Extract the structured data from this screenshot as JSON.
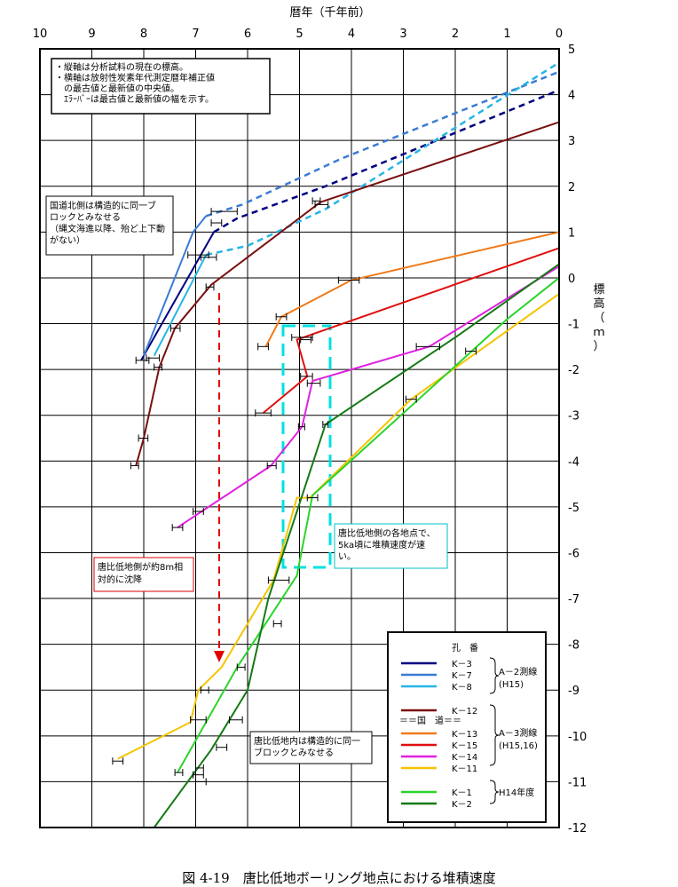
{
  "chart_data": {
    "type": "line",
    "title": "",
    "xlabel": "暦年（千年前）",
    "ylabel": "標高（ｍ）",
    "xlim": [
      10,
      0
    ],
    "ylim": [
      -12,
      5
    ],
    "x_ticks": [
      "10",
      "9",
      "8",
      "7",
      "6",
      "5",
      "4",
      "3",
      "2",
      "1",
      "0"
    ],
    "y_ticks": [
      "5",
      "4",
      "3",
      "2",
      "1",
      "0",
      "-1",
      "-2",
      "-3",
      "-4",
      "-5",
      "-6",
      "-7",
      "-8",
      "-9",
      "-10",
      "-11",
      "-12"
    ],
    "grid": true,
    "series": [
      {
        "name": "K－3",
        "color": "#000080",
        "points": [
          [
            8.05,
            -1.8
          ],
          [
            7.4,
            -0.5
          ],
          [
            6.65,
            1.0
          ]
        ],
        "dashed": [
          [
            6.65,
            1.0
          ],
          [
            6.2,
            1.3
          ],
          [
            4.5,
            2.0
          ],
          [
            0,
            4.1
          ]
        ]
      },
      {
        "name": "K－7",
        "color": "#3a7bd5",
        "points": [
          [
            8.0,
            -1.7
          ],
          [
            7.05,
            1.0
          ],
          [
            6.8,
            1.35
          ]
        ],
        "dashed": [
          [
            6.8,
            1.35
          ],
          [
            6.1,
            1.6
          ],
          [
            4.2,
            2.6
          ],
          [
            0,
            4.5
          ]
        ]
      },
      {
        "name": "K－8",
        "color": "#27b5e6",
        "points": [
          [
            7.8,
            -1.7
          ],
          [
            6.8,
            0.5
          ]
        ],
        "dashed": [
          [
            6.8,
            0.5
          ],
          [
            6.0,
            0.7
          ],
          [
            4.5,
            1.5
          ],
          [
            0,
            4.7
          ]
        ]
      },
      {
        "name": "K－12",
        "color": "#7a1010",
        "points": [
          [
            8.15,
            -4.1
          ],
          [
            8.0,
            -3.5
          ],
          [
            7.7,
            -1.95
          ],
          [
            7.4,
            -1.1
          ],
          [
            6.7,
            -0.15
          ],
          [
            4.6,
            1.65
          ],
          [
            0,
            3.4
          ]
        ]
      },
      {
        "name": "K－13",
        "color": "#f07a1a",
        "points": [
          [
            5.65,
            -1.5
          ],
          [
            5.35,
            -0.85
          ],
          [
            4.0,
            -0.05
          ],
          [
            0,
            1.0
          ]
        ]
      },
      {
        "name": "K－15",
        "color": "#e01010",
        "points": [
          [
            5.7,
            -2.95
          ],
          [
            4.85,
            -2.15
          ],
          [
            5.05,
            -1.35
          ],
          [
            4.8,
            -1.25
          ],
          [
            0,
            0.65
          ]
        ]
      },
      {
        "name": "K－14",
        "color": "#e020e0",
        "points": [
          [
            7.35,
            -5.45
          ],
          [
            5.55,
            -4.1
          ],
          [
            4.95,
            -3.25
          ],
          [
            4.75,
            -2.25
          ],
          [
            2.5,
            -1.5
          ],
          [
            0,
            0.25
          ]
        ]
      },
      {
        "name": "K－11",
        "color": "#f5c400",
        "points": [
          [
            8.5,
            -10.5
          ],
          [
            7.1,
            -9.7
          ],
          [
            6.95,
            -9.0
          ],
          [
            6.5,
            -8.5
          ],
          [
            5.5,
            -6.6
          ],
          [
            5.05,
            -4.8
          ],
          [
            4.8,
            -4.8
          ],
          [
            2.85,
            -2.65
          ],
          [
            0,
            -0.35
          ]
        ]
      },
      {
        "name": "K－1",
        "color": "#2ad42a",
        "points": [
          [
            7.35,
            -10.8
          ],
          [
            6.2,
            -8.5
          ],
          [
            5.05,
            -6.5
          ],
          [
            4.75,
            -4.75
          ],
          [
            1.0,
            -0.9
          ],
          [
            0,
            0.0
          ]
        ]
      },
      {
        "name": "K－2",
        "color": "#157a15",
        "points": [
          [
            7.8,
            -12.0
          ],
          [
            6.7,
            -10.3
          ],
          [
            6.0,
            -9.0
          ],
          [
            5.6,
            -7.0
          ],
          [
            4.5,
            -3.2
          ],
          [
            2.0,
            -1.3
          ],
          [
            0,
            0.3
          ]
        ]
      }
    ],
    "error_bars": [
      [
        6.7,
        1.45,
        6.2,
        1.45
      ],
      [
        6.7,
        1.2,
        6.5,
        1.2
      ],
      [
        7.15,
        0.5,
        6.75,
        0.5
      ],
      [
        6.9,
        0.45,
        6.6,
        0.45
      ],
      [
        8.15,
        -1.8,
        7.9,
        -1.8
      ],
      [
        7.95,
        -1.75,
        7.7,
        -1.75
      ],
      [
        6.8,
        -0.2,
        6.65,
        -0.2
      ],
      [
        7.48,
        -1.1,
        7.3,
        -1.1
      ],
      [
        7.8,
        -1.95,
        7.65,
        -1.95
      ],
      [
        8.1,
        -3.5,
        7.92,
        -3.5
      ],
      [
        8.25,
        -4.1,
        8.1,
        -4.1
      ],
      [
        4.7,
        1.6,
        4.45,
        1.6
      ],
      [
        4.75,
        1.68,
        4.6,
        1.68
      ],
      [
        5.8,
        -1.5,
        5.6,
        -1.5
      ],
      [
        5.45,
        -0.85,
        5.25,
        -0.85
      ],
      [
        4.25,
        -0.05,
        3.85,
        -0.05
      ],
      [
        5.15,
        -1.3,
        4.75,
        -1.3
      ],
      [
        4.98,
        -1.35,
        4.78,
        -1.35
      ],
      [
        4.98,
        -2.15,
        4.75,
        -2.15
      ],
      [
        5.85,
        -2.95,
        5.55,
        -2.95
      ],
      [
        5.62,
        -4.1,
        5.45,
        -4.1
      ],
      [
        5.02,
        -3.25,
        4.9,
        -3.25
      ],
      [
        4.85,
        -2.3,
        4.6,
        -2.3
      ],
      [
        2.75,
        -1.5,
        2.3,
        -1.5
      ],
      [
        7.45,
        -5.45,
        7.25,
        -5.45
      ],
      [
        7.05,
        -5.1,
        6.85,
        -5.1
      ],
      [
        4.85,
        -4.8,
        4.65,
        -4.8
      ],
      [
        4.55,
        -3.2,
        4.45,
        -3.2
      ],
      [
        2.95,
        -2.65,
        2.75,
        -2.65
      ],
      [
        1.8,
        -1.6,
        1.6,
        -1.6
      ],
      [
        5.6,
        -6.6,
        5.2,
        -6.6
      ],
      [
        5.5,
        -7.55,
        5.35,
        -7.55
      ],
      [
        6.2,
        -8.5,
        6.05,
        -8.5
      ],
      [
        6.9,
        -9.0,
        6.75,
        -9.0
      ],
      [
        7.1,
        -9.65,
        6.8,
        -9.65
      ],
      [
        6.35,
        -9.65,
        6.1,
        -9.65
      ],
      [
        6.6,
        -10.25,
        6.4,
        -10.25
      ],
      [
        8.6,
        -10.55,
        8.4,
        -10.55
      ],
      [
        7.4,
        -10.8,
        7.25,
        -10.8
      ],
      [
        7.0,
        -10.7,
        6.85,
        -10.7
      ],
      [
        7.05,
        -10.85,
        6.85,
        -10.85
      ],
      [
        7.0,
        -11.0,
        6.8,
        -11.0
      ]
    ],
    "annotations": {
      "note": [
        "・縦軸は分析試料の現在の標高。",
        "・横軸は放射性炭素年代測定暦年補正値",
        "　の最古値と最新値の中央値。",
        "　ｴﾗｰﾊﾞｰは最古値と最新値の幅を示す。"
      ],
      "north": [
        "国道北側は構造的に同一ブ",
        "ロックとみなせる",
        "（縄文海進以降、殆ど上下動",
        "がない）"
      ],
      "subside": [
        "唐比低地側が約8m相",
        "対的に沈降"
      ],
      "fast": [
        "唐比低地側の各地点で、",
        "5ka頃に堆積速度が速",
        "い。"
      ],
      "inside": [
        "唐比低地内は構造的に同一",
        "ブロックとみなせる"
      ]
    },
    "legend": {
      "header": "孔　番",
      "road_label": "＝＝国　道＝＝",
      "group1": {
        "label1": "A－2測線",
        "label2": "(H15)"
      },
      "group2": {
        "label1": "A－3測線",
        "label2": "(H15,16)"
      },
      "group3": {
        "label1": "H14年度"
      }
    }
  },
  "caption": "図 4-19　唐比低地ボーリング地点における堆積速度"
}
